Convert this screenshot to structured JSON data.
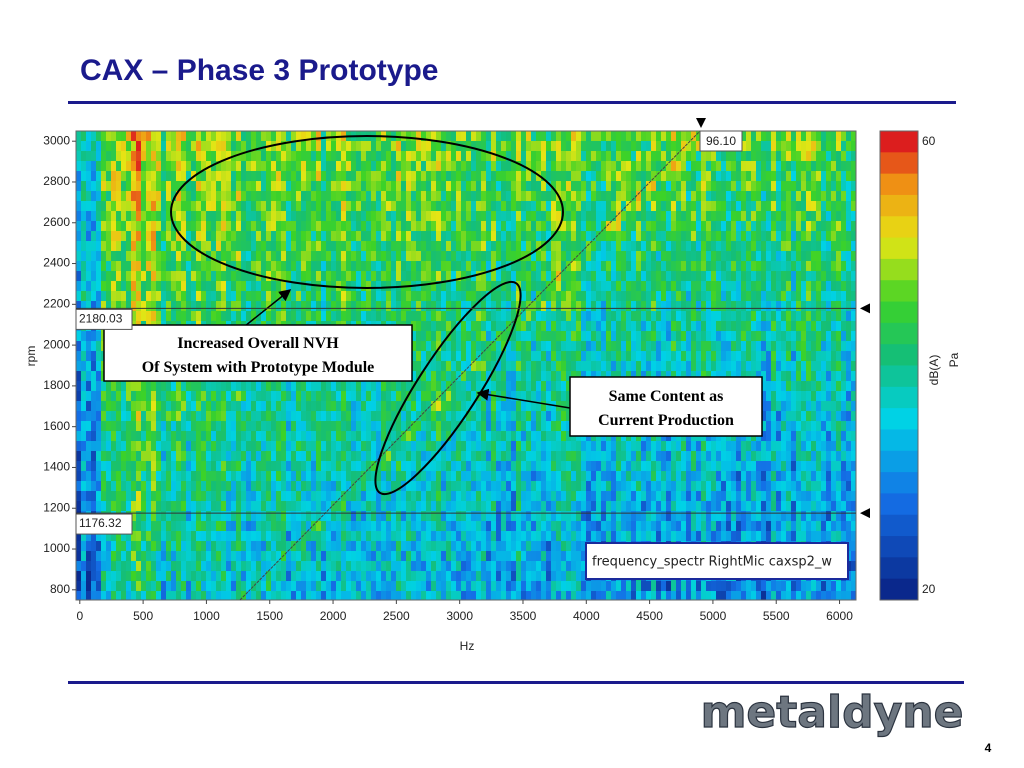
{
  "title": "CAX – Phase 3 Prototype",
  "plot": {
    "xlabel": "Hz",
    "ylabel": "rpm",
    "xlim": [
      -30,
      6130
    ],
    "ylim": [
      750,
      3050
    ],
    "xticks": [
      0,
      500,
      1000,
      1500,
      2000,
      2500,
      3000,
      3500,
      4000,
      4500,
      5000,
      5500,
      6000
    ],
    "yticks": [
      800,
      1000,
      1200,
      1400,
      1600,
      1800,
      2000,
      2200,
      2400,
      2600,
      2800,
      3000
    ],
    "cursors": [
      2180.03,
      1176.32
    ],
    "top_cursor": "96.10",
    "legend": "frequency_spectr RightMic caxsp2_w"
  },
  "colorbar": {
    "max": 60,
    "min": 20,
    "label": "dB(A)",
    "unit": "Pa"
  },
  "annotations": [
    {
      "lines": [
        "Increased Overall NVH",
        "Of System with Prototype Module"
      ]
    },
    {
      "lines": [
        "Same Content as",
        "Current Production"
      ]
    }
  ],
  "logo": "metaldyne",
  "page_number": "4"
}
